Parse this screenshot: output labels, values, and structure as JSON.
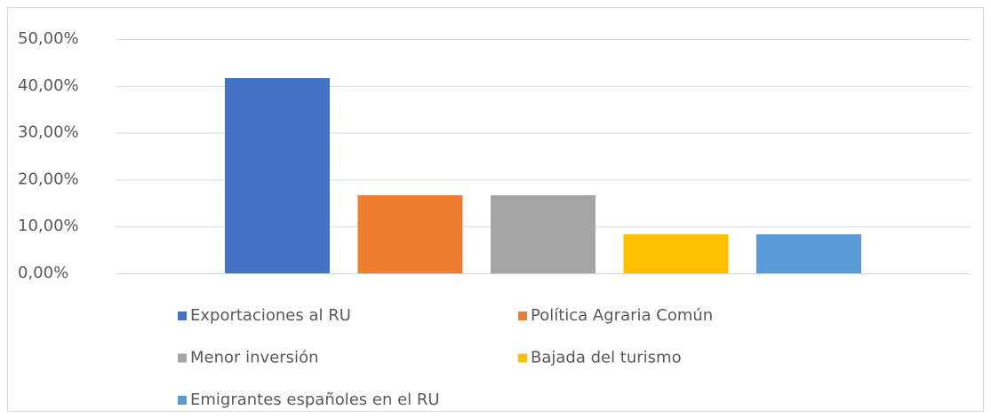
{
  "chart_data": {
    "type": "bar",
    "categories": [
      null
    ],
    "series": [
      {
        "name": "Exportaciones al RU",
        "color": "#4472c4",
        "values": [
          41.67
        ]
      },
      {
        "name": "Política Agraria Común",
        "color": "#ed7d31",
        "values": [
          16.67
        ]
      },
      {
        "name": "Menor inversión",
        "color": "#a5a5a5",
        "values": [
          16.67
        ]
      },
      {
        "name": "Bajada del turismo",
        "color": "#ffc000",
        "values": [
          8.33
        ]
      },
      {
        "name": "Emigrantes españoles en el RU",
        "color": "#5b9bd5",
        "values": [
          8.33
        ]
      }
    ],
    "ylim": [
      0,
      50
    ],
    "yticks": [
      {
        "value": 0,
        "label": "0,00%"
      },
      {
        "value": 10,
        "label": "10,00%"
      },
      {
        "value": 20,
        "label": "20,00%"
      },
      {
        "value": 30,
        "label": "30,00%"
      },
      {
        "value": 40,
        "label": "40,00%"
      },
      {
        "value": 50,
        "label": "50,00%"
      }
    ],
    "grid": true,
    "legend": "bottom"
  }
}
